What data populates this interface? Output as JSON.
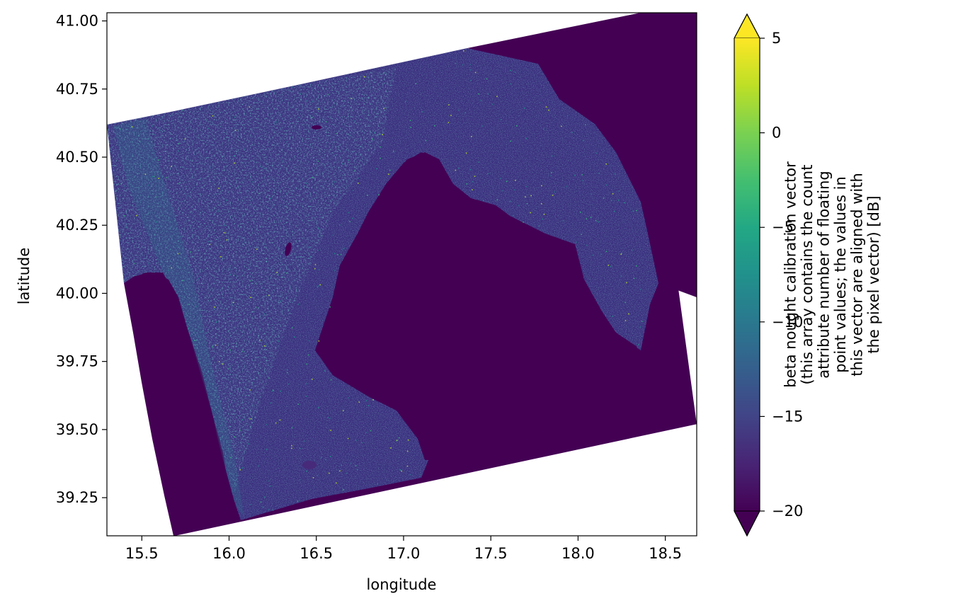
{
  "chart_data": {
    "type": "heatmap",
    "title": "",
    "xlabel": "longitude",
    "ylabel": "latitude",
    "xlim": [
      15.3,
      18.68
    ],
    "ylim": [
      39.11,
      41.03
    ],
    "xticks": [
      15.5,
      16.0,
      16.5,
      17.0,
      17.5,
      18.0,
      18.5
    ],
    "xtick_labels": [
      "15.5",
      "16.0",
      "16.5",
      "17.0",
      "17.5",
      "18.0",
      "18.5"
    ],
    "yticks": [
      39.25,
      39.5,
      39.75,
      40.0,
      40.25,
      40.5,
      40.75,
      41.0
    ],
    "ytick_labels": [
      "39.25",
      "39.50",
      "39.75",
      "40.00",
      "40.25",
      "40.50",
      "40.75",
      "41.00"
    ],
    "grid": false,
    "colormap": "viridis",
    "colorbar": {
      "min": -20,
      "max": 5,
      "extend": "both",
      "ticks": [
        -20,
        -15,
        -10,
        -5,
        0,
        5
      ],
      "tick_labels": [
        "−20",
        "−15",
        "−10",
        "−5",
        "0",
        "5"
      ],
      "label_lines": [
        "beta nought calibration vector",
        "(this array contains the count",
        "attribute number of floating",
        "point values; the values in",
        "this vector are aligned with",
        "the pixel vector) [dB]"
      ]
    },
    "image_footprint": {
      "description_values": "corners of the imaged swath in lon/lat",
      "corners": [
        [
          15.3,
          40.615
        ],
        [
          18.36,
          41.03
        ],
        [
          18.68,
          39.52
        ],
        [
          15.69,
          39.11
        ]
      ]
    },
    "colors": {
      "background_value": "#440154",
      "land_low": "#3b2f7e",
      "land_high": "#21918c",
      "bright": "#b5de2b",
      "above_max": "#fde725",
      "below_min": "#440154"
    }
  }
}
